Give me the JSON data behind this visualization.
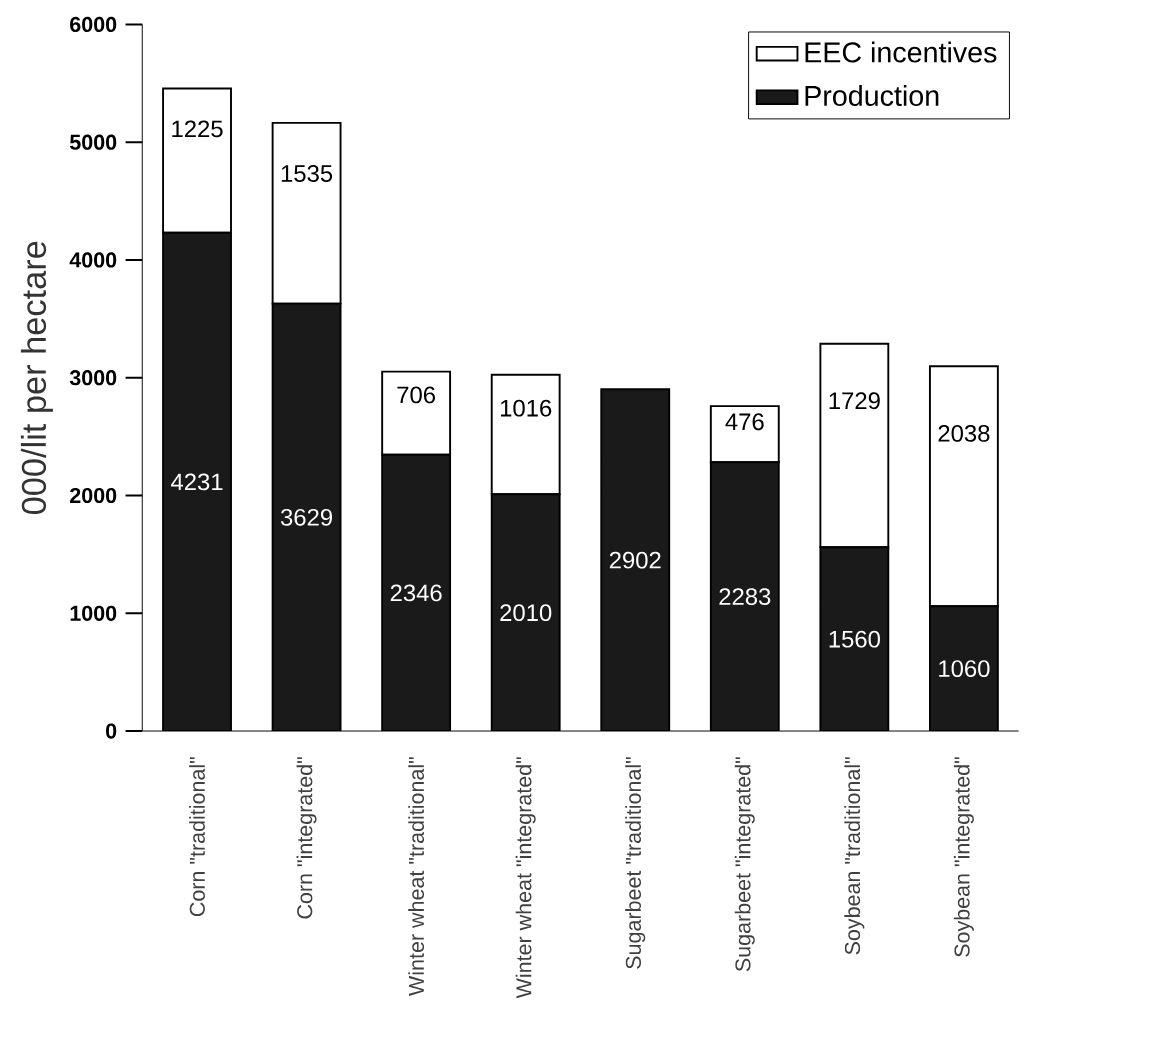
{
  "chart_data": {
    "type": "bar",
    "stacked": true,
    "ylabel": "000/lit per hectare",
    "categories": [
      "Corn \"traditional\"",
      "Corn \"integrated\"",
      "Winter wheat \"traditional\"",
      "Winter wheat \"integrated\"",
      "Sugarbeet \"traditional\"",
      "Sugarbeet \"integrated\"",
      "Soybean \"traditional\"",
      "Soybean \"integrated\""
    ],
    "series": [
      {
        "name": "Production",
        "color": "#1a1a1a",
        "values": [
          4231,
          3629,
          2346,
          2010,
          2902,
          2283,
          1560,
          1060
        ]
      },
      {
        "name": "EEC incentives",
        "color": "#ffffff",
        "values": [
          1225,
          1535,
          706,
          1016,
          null,
          476,
          1729,
          2038
        ]
      }
    ],
    "ylim": [
      0,
      6000
    ],
    "yticks": [
      0,
      1000,
      2000,
      3000,
      4000,
      5000,
      6000
    ],
    "data_labels": true,
    "legend": "top right",
    "grid": false
  }
}
